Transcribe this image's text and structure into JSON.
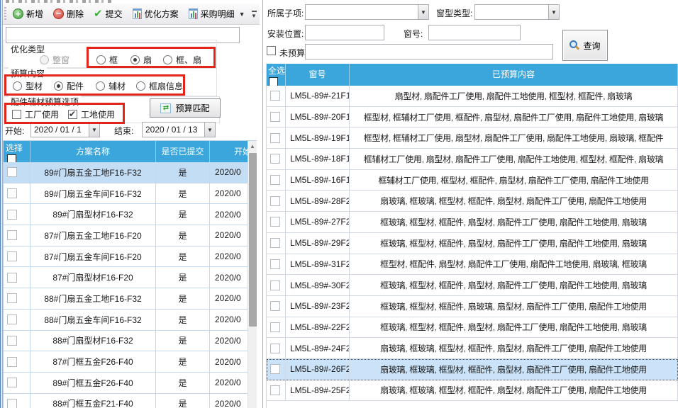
{
  "toolbar": {
    "buttons": [
      {
        "label": "新增"
      },
      {
        "label": "删除"
      },
      {
        "label": "提交"
      },
      {
        "label": "优化方案"
      },
      {
        "label": "采购明细"
      }
    ]
  },
  "left": {
    "filter_input_value": "",
    "optimize_type_label": "优化类型",
    "optimize_type_options": [
      {
        "label": "整窗",
        "checked": false,
        "disabled": true
      },
      {
        "label": "框",
        "checked": false
      },
      {
        "label": "扇",
        "checked": true
      },
      {
        "label": "框、扇",
        "checked": false
      }
    ],
    "budget_content_label": "预算内容",
    "budget_content_options": [
      {
        "label": "型材",
        "checked": false
      },
      {
        "label": "配件",
        "checked": true
      },
      {
        "label": "辅材",
        "checked": false
      },
      {
        "label": "框扇信息",
        "checked": false
      }
    ],
    "acc_label": "配件辅材预算选项",
    "acc_checkboxes": [
      {
        "label": "工厂使用",
        "checked": false
      },
      {
        "label": "工地使用",
        "checked": true
      }
    ],
    "match_button": "预算匹配",
    "start_label": "开始:",
    "start_value": "2020 / 01 / 1",
    "end_label": "结束:",
    "end_value": "2020 / 01 / 13",
    "table": {
      "headers": {
        "select": "选择",
        "name": "方案名称",
        "submitted": "是否已提交",
        "start": "开始"
      },
      "rows": [
        {
          "name": "89#门扇五金工地F16-F32",
          "submitted": "是",
          "start": "2020/0",
          "selected": true
        },
        {
          "name": "89#门扇五金车间F16-F32",
          "submitted": "是",
          "start": "2020/0",
          "selected": false
        },
        {
          "name": "89#门扇型材F16-F32",
          "submitted": "是",
          "start": "2020/0",
          "selected": false
        },
        {
          "name": "87#门扇五金工地F16-F20",
          "submitted": "是",
          "start": "2020/0",
          "selected": false
        },
        {
          "name": "87#门扇五金车间F16-F20",
          "submitted": "是",
          "start": "2020/0",
          "selected": false
        },
        {
          "name": "87#门扇型材F16-F20",
          "submitted": "是",
          "start": "2020/0",
          "selected": false
        },
        {
          "name": "88#门扇五金工地F16-F32",
          "submitted": "是",
          "start": "2020/0",
          "selected": false
        },
        {
          "name": "88#门扇五金车间F16-F32",
          "submitted": "是",
          "start": "2020/0",
          "selected": false
        },
        {
          "name": "88#门扇型材F16-F32",
          "submitted": "是",
          "start": "2020/0",
          "selected": false
        },
        {
          "name": "87#门框五金F26-F40",
          "submitted": "是",
          "start": "2020/0",
          "selected": false
        },
        {
          "name": "89#门框五金F26-F40",
          "submitted": "是",
          "start": "2020/0",
          "selected": false
        },
        {
          "name": "88#门框五金F21-F40",
          "submitted": "是",
          "start": "2020/0",
          "selected": false
        }
      ]
    }
  },
  "right": {
    "sub_item_label": "所属子项:",
    "window_type_label": "窗型类型:",
    "install_pos_label": "安装位置:",
    "window_no_label": "窗号:",
    "no_budget_label": "未预算:",
    "no_budget_checked": false,
    "query_button": "查询",
    "table": {
      "headers": {
        "select_all": "全选",
        "window_no": "窗号",
        "content": "已预算内容"
      },
      "rows": [
        {
          "window_no": "LM5L-89#-21F19",
          "content": "扇型材, 扇配件工厂使用, 扇配件工地使用, 框型材, 框配件, 扇玻璃",
          "selected": false
        },
        {
          "window_no": "LM5L-89#-20F18",
          "content": "框型材, 框辅材工厂使用, 框配件, 扇型材, 扇配件工厂使用, 扇配件工地使用, 扇玻璃",
          "selected": false
        },
        {
          "window_no": "LM5L-89#-19F17",
          "content": "框型材, 框辅材工厂使用, 扇型材, 扇配件工厂使用, 扇配件工地使用, 扇玻璃, 框配件",
          "selected": false
        },
        {
          "window_no": "LM5L-89#-18F16",
          "content": "框辅材工厂使用, 扇型材, 扇配件工厂使用, 扇配件工地使用, 框型材, 框配件, 扇玻璃",
          "selected": false
        },
        {
          "window_no": "LM5L-89#-16F15",
          "content": "框辅材工厂使用, 框型材, 框配件, 扇型材, 扇配件工厂使用, 扇配件工地使用",
          "selected": false
        },
        {
          "window_no": "LM5L-89#-28F26",
          "content": "扇玻璃, 框玻璃, 框型材, 框配件, 扇型材, 扇配件工厂使用, 扇配件工地使用",
          "selected": false
        },
        {
          "window_no": "LM5L-89#-27F25",
          "content": "框玻璃, 框型材, 框配件, 扇型材, 扇配件工厂使用, 扇配件工地使用, 扇玻璃",
          "selected": false
        },
        {
          "window_no": "LM5L-89#-29F27",
          "content": "框玻璃, 框型材, 框配件, 扇型材, 扇配件工厂使用, 扇配件工地使用, 扇玻璃",
          "selected": false
        },
        {
          "window_no": "LM5L-89#-31F29",
          "content": "框型材, 框配件, 扇型材, 扇配件工厂使用, 扇配件工地使用, 扇玻璃, 框玻璃",
          "selected": false
        },
        {
          "window_no": "LM5L-89#-30F28",
          "content": "框玻璃, 框型材, 框配件, 扇型材, 扇配件工厂使用, 扇配件工地使用, 扇玻璃",
          "selected": false
        },
        {
          "window_no": "LM5L-89#-23F21",
          "content": "框玻璃, 框型材, 框配件, 扇玻璃, 扇型材, 扇配件工厂使用, 扇配件工地使用",
          "selected": false
        },
        {
          "window_no": "LM5L-89#-22F20",
          "content": "框玻璃, 框型材, 框配件, 扇型材, 扇配件工厂使用, 扇配件工地使用, 扇玻璃",
          "selected": false
        },
        {
          "window_no": "LM5L-89#-24F22",
          "content": "扇玻璃, 框玻璃, 框型材, 框配件, 扇型材, 扇配件工厂使用, 扇配件工地使用",
          "selected": false
        },
        {
          "window_no": "LM5L-89#-26F24",
          "content": "扇玻璃, 框玻璃, 框型材, 框配件, 扇型材, 扇配件工厂使用, 扇配件工地使用",
          "selected": true
        },
        {
          "window_no": "LM5L-89#-25F23",
          "content": "扇玻璃, 框玻璃, 框型材, 框配件, 扇型材, 扇配件工厂使用, 扇配件工地使用",
          "selected": false
        }
      ]
    }
  },
  "colors": {
    "header_blue": "#3BA6DB",
    "selected_row_blue": "#C9E2F8",
    "annotation_red": "#E1251B"
  }
}
